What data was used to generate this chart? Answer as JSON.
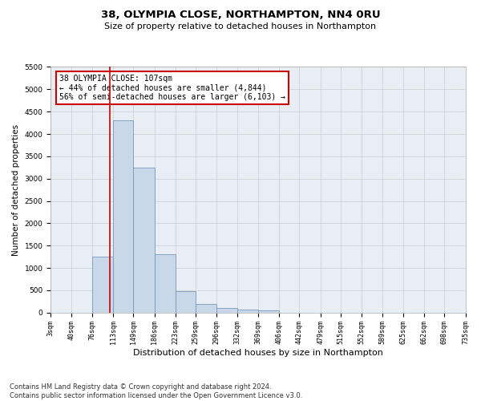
{
  "title": "38, OLYMPIA CLOSE, NORTHAMPTON, NN4 0RU",
  "subtitle": "Size of property relative to detached houses in Northampton",
  "xlabel": "Distribution of detached houses by size in Northampton",
  "ylabel": "Number of detached properties",
  "bin_edges": [
    3,
    40,
    76,
    113,
    149,
    186,
    223,
    259,
    296,
    332,
    369,
    406,
    442,
    479,
    515,
    552,
    589,
    625,
    662,
    698,
    735
  ],
  "bar_heights": [
    0,
    0,
    1250,
    4300,
    3250,
    1300,
    475,
    200,
    100,
    75,
    55,
    0,
    0,
    0,
    0,
    0,
    0,
    0,
    0,
    0
  ],
  "bar_color": "#c8d8e8",
  "bar_edgecolor": "#7799bb",
  "grid_color": "#cccccc",
  "vline_x": 107,
  "vline_color": "#cc0000",
  "annotation_text": "38 OLYMPIA CLOSE: 107sqm\n← 44% of detached houses are smaller (4,844)\n56% of semi-detached houses are larger (6,103) →",
  "annotation_box_color": "#ffffff",
  "annotation_box_edgecolor": "#cc0000",
  "ylim": [
    0,
    5500
  ],
  "yticks": [
    0,
    500,
    1000,
    1500,
    2000,
    2500,
    3000,
    3500,
    4000,
    4500,
    5000,
    5500
  ],
  "footer_text": "Contains HM Land Registry data © Crown copyright and database right 2024.\nContains public sector information licensed under the Open Government Licence v3.0.",
  "background_color": "#ffffff",
  "plot_bg_color": "#e8eef4",
  "title_fontsize": 9.5,
  "subtitle_fontsize": 8,
  "xlabel_fontsize": 8,
  "ylabel_fontsize": 7.5,
  "tick_fontsize": 6,
  "annotation_fontsize": 7,
  "footer_fontsize": 6
}
